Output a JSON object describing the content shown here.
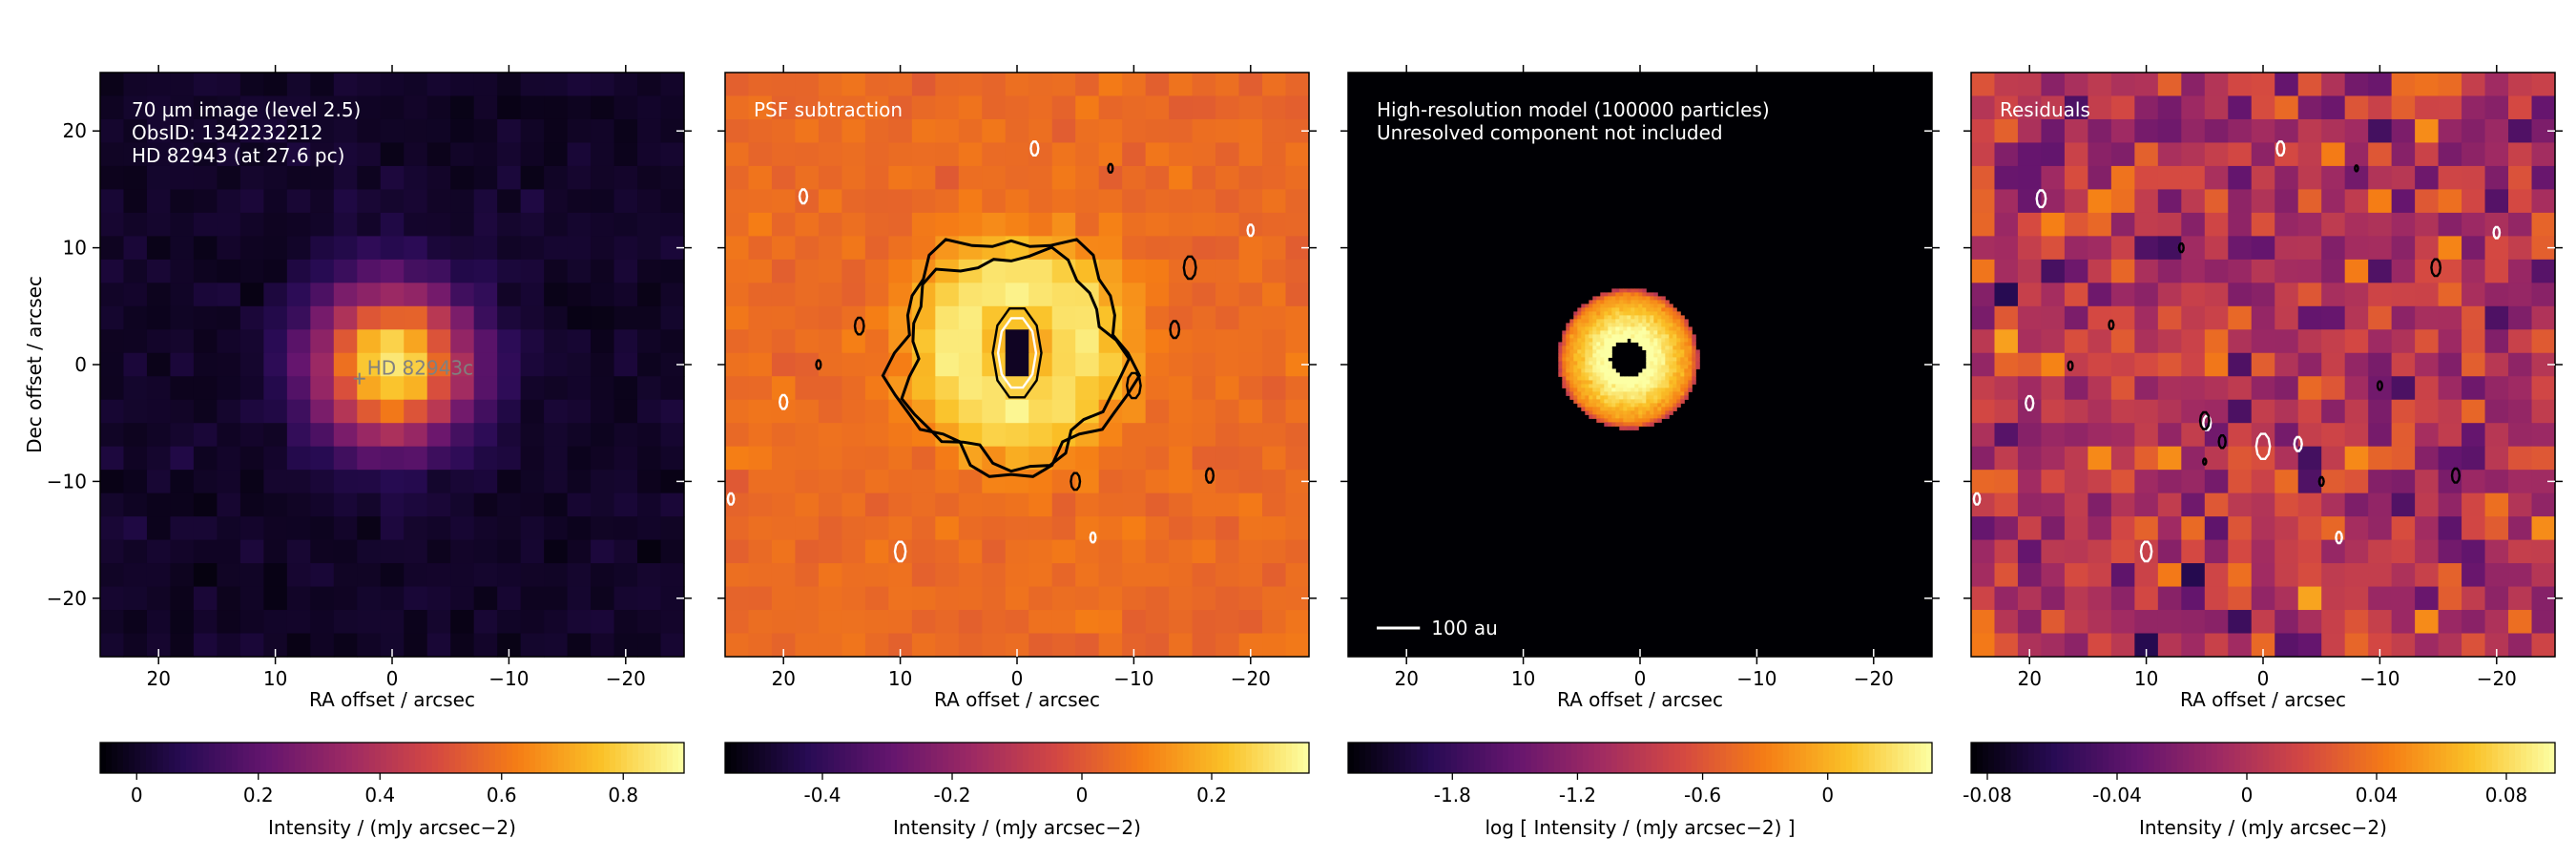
{
  "figure_title": "",
  "chart_data": [
    {
      "type": "heatmap",
      "panel": "observation",
      "colormap": "inferno",
      "annotation_lines": [
        "70 µm image (level 2.5)",
        "ObsID: 1342232212",
        "HD 82943 (at 27.6 pc)"
      ],
      "marker_label": "HD  82943c",
      "marker_position": [
        2.8,
        -1.2
      ],
      "xlabel": "RA offset / arcsec",
      "ylabel": "Dec offset / arcsec",
      "xlim": [
        25,
        -25
      ],
      "ylim": [
        -25,
        25
      ],
      "xticks": [
        20,
        10,
        0,
        -10,
        -20
      ],
      "yticks": [
        20,
        10,
        0,
        -10,
        -20
      ],
      "grid": false,
      "source": {
        "x": 0,
        "y": 0,
        "sigma": 4.6,
        "peak": 0.86
      },
      "pixel_grid": 25,
      "colorbar": {
        "label": "Intensity / (mJy arcsec−2)",
        "range": [
          -0.06,
          0.9
        ],
        "ticks": [
          0,
          0.2,
          0.4,
          0.6,
          0.8
        ],
        "ticklabels": [
          "0",
          "0.2",
          "0.4",
          "0.6",
          "0.8"
        ]
      }
    },
    {
      "type": "heatmap",
      "panel": "psf-subtraction",
      "colormap": "inferno",
      "annotation_lines": [
        "PSF subtraction"
      ],
      "xlabel": "RA offset / arcsec",
      "xlim": [
        25,
        -25
      ],
      "ylim": [
        -25,
        25
      ],
      "xticks": [
        20,
        10,
        0,
        -10,
        -20
      ],
      "grid": false,
      "ring": {
        "x": 0,
        "y": 1.5,
        "radius": 5.5,
        "width": 3.2,
        "peak": 0.3
      },
      "hole": {
        "x": 0,
        "y": 1,
        "radius": 2.2,
        "value": -0.5
      },
      "background": 0.05,
      "pixel_grid": 25,
      "contours": [
        {
          "x": 0.5,
          "y": 1,
          "radius": 10,
          "color": "black"
        },
        {
          "x": 0.5,
          "y": 0.5,
          "radius": 9,
          "color": "black"
        },
        {
          "x": 0,
          "y": 1,
          "radius": 3.2,
          "color": "black"
        },
        {
          "x": 0,
          "y": 1,
          "radius": 2.5,
          "color": "white"
        },
        {
          "x": -14.8,
          "y": 8.3,
          "radius": 0.8,
          "color": "black"
        },
        {
          "x": 13.5,
          "y": 3.3,
          "radius": 0.6,
          "color": "black"
        },
        {
          "x": -13.5,
          "y": 3,
          "radius": 0.6,
          "color": "black"
        },
        {
          "x": -10,
          "y": -1.8,
          "radius": 0.9,
          "color": "black"
        },
        {
          "x": -5,
          "y": -10,
          "radius": 0.6,
          "color": "black"
        },
        {
          "x": -16.5,
          "y": -9.5,
          "radius": 0.5,
          "color": "black"
        },
        {
          "x": 17,
          "y": 0,
          "radius": 0.3,
          "color": "black"
        },
        {
          "x": -8,
          "y": 16.8,
          "radius": 0.3,
          "color": "black"
        },
        {
          "x": -1.5,
          "y": 18.5,
          "radius": 0.5,
          "color": "white"
        },
        {
          "x": 18.3,
          "y": 14.4,
          "radius": 0.5,
          "color": "white"
        },
        {
          "x": 20,
          "y": -3.2,
          "radius": 0.5,
          "color": "white"
        },
        {
          "x": 10,
          "y": -16,
          "radius": 0.7,
          "color": "white"
        },
        {
          "x": -20,
          "y": 11.5,
          "radius": 0.4,
          "color": "white"
        },
        {
          "x": -6.5,
          "y": -14.8,
          "radius": 0.35,
          "color": "white"
        },
        {
          "x": 24.5,
          "y": -11.5,
          "radius": 0.4,
          "color": "white"
        }
      ],
      "colorbar": {
        "label": "Intensity / (mJy arcsec−2)",
        "range": [
          -0.55,
          0.35
        ],
        "ticks": [
          -0.4,
          -0.2,
          0,
          0.2
        ],
        "ticklabels": [
          "-0.4",
          "-0.2",
          "0",
          "0.2"
        ]
      }
    },
    {
      "type": "heatmap",
      "panel": "model",
      "colormap": "inferno",
      "annotation_lines": [
        "High-resolution model (100000 particles)",
        "Unresolved component not included"
      ],
      "scale_bar_label": "100 au",
      "scale_bar_length": 3.7,
      "xlabel": "RA offset / arcsec",
      "xlim": [
        25,
        -25
      ],
      "ylim": [
        -25,
        25
      ],
      "xticks": [
        20,
        10,
        0,
        -10,
        -20
      ],
      "grid": false,
      "disc": {
        "x": 1,
        "y": 0.5,
        "inner_radius": 1.6,
        "outer_radius": 6,
        "inner_level": 0.6,
        "outer_level": -0.4
      },
      "colorbar": {
        "label": "log [ Intensity / (mJy arcsec−2) ]",
        "range": [
          -2.3,
          0.5
        ],
        "ticks": [
          -1.8,
          -1.2,
          -0.6,
          0
        ],
        "ticklabels": [
          "-1.8",
          "-1.2",
          "-0.6",
          "0"
        ]
      }
    },
    {
      "type": "heatmap",
      "panel": "residuals",
      "colormap": "inferno",
      "annotation_lines": [
        "Residuals"
      ],
      "xlabel": "RA offset / arcsec",
      "xlim": [
        25,
        -25
      ],
      "ylim": [
        -25,
        25
      ],
      "xticks": [
        20,
        10,
        0,
        -10,
        -20
      ],
      "grid": false,
      "noise_sigma": 0.03,
      "pixel_grid": 25,
      "contours": [
        {
          "x": 19,
          "y": 14.2,
          "radius": 0.6,
          "color": "white"
        },
        {
          "x": 20,
          "y": -3.3,
          "radius": 0.5,
          "color": "white"
        },
        {
          "x": 10,
          "y": -16,
          "radius": 0.7,
          "color": "white"
        },
        {
          "x": -1.5,
          "y": 18.5,
          "radius": 0.5,
          "color": "white"
        },
        {
          "x": 0,
          "y": -7,
          "radius": 0.9,
          "color": "white"
        },
        {
          "x": -3,
          "y": -6.8,
          "radius": 0.5,
          "color": "white"
        },
        {
          "x": -20,
          "y": 11.3,
          "radius": 0.4,
          "color": "white"
        },
        {
          "x": -6.5,
          "y": -14.8,
          "radius": 0.4,
          "color": "white"
        },
        {
          "x": 24.5,
          "y": -11.5,
          "radius": 0.4,
          "color": "white"
        },
        {
          "x": 4.8,
          "y": -5,
          "radius": 0.5,
          "color": "white"
        },
        {
          "x": -14.8,
          "y": 8.3,
          "radius": 0.6,
          "color": "black"
        },
        {
          "x": 5,
          "y": -4.8,
          "radius": 0.6,
          "color": "black"
        },
        {
          "x": 3.5,
          "y": -6.6,
          "radius": 0.45,
          "color": "black"
        },
        {
          "x": -16.5,
          "y": -9.5,
          "radius": 0.5,
          "color": "black"
        },
        {
          "x": -5,
          "y": -10,
          "radius": 0.3,
          "color": "black"
        },
        {
          "x": 13,
          "y": 3.4,
          "radius": 0.3,
          "color": "black"
        },
        {
          "x": -10,
          "y": -1.8,
          "radius": 0.3,
          "color": "black"
        },
        {
          "x": 16.5,
          "y": -0.1,
          "radius": 0.3,
          "color": "black"
        },
        {
          "x": 5,
          "y": -8.3,
          "radius": 0.2,
          "color": "black"
        },
        {
          "x": -8,
          "y": 16.8,
          "radius": 0.2,
          "color": "black"
        },
        {
          "x": 7,
          "y": 10,
          "radius": 0.3,
          "color": "black"
        }
      ],
      "colorbar": {
        "label": "Intensity / (mJy arcsec−2)",
        "range": [
          -0.085,
          0.095
        ],
        "ticks": [
          -0.08,
          -0.04,
          0,
          0.04,
          0.08
        ],
        "ticklabels": [
          "-0.08",
          "-0.04",
          "0",
          "0.04",
          "0.08"
        ]
      }
    }
  ]
}
